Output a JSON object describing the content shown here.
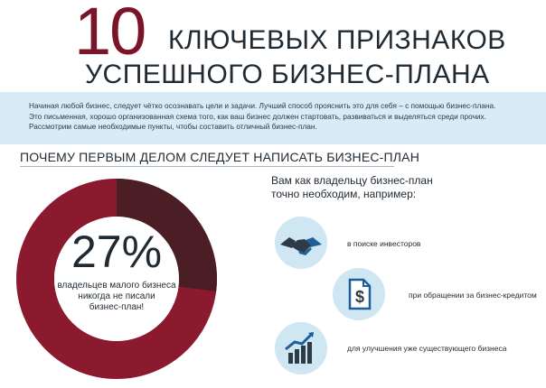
{
  "header": {
    "number": "10",
    "line1": "КЛЮЧЕВЫХ ПРИЗНАКОВ",
    "line2": "УСПЕШНОГО БИЗНЕС-ПЛАНА"
  },
  "intro": {
    "line1": "Начиная любой бизнес, следует чётко осознавать цели и задачи. Лучший способ прояснить это для себя – с помощью бизнес-плана.",
    "line2": "Это письменная, хорошо организованная схема того, как ваш бизнес должен стартовать, развиваться и выделяться среди прочих.",
    "line3": "Рассмотрим самые необходимые пункты, чтобы составить отличный бизнес-план."
  },
  "section": {
    "title": "ПОЧЕМУ ПЕРВЫМ ДЕЛОМ СЛЕДУЕТ НАПИСАТЬ БИЗНЕС-ПЛАН"
  },
  "stat": {
    "value": "27%",
    "fraction": 0.27,
    "line1": "владельцев малого бизнеса",
    "line2": "никогда не писали",
    "line3": "бизнес-план!",
    "colors": {
      "main": "#8c1a2e",
      "highlight": "#4a1e24"
    }
  },
  "right": {
    "intro_line1": "Вам как владельцу бизнес-план",
    "intro_line2": "точно необходим, например:",
    "items": [
      {
        "icon": "handshake-icon",
        "label": "в поиске инвесторов"
      },
      {
        "icon": "dollar-document-icon",
        "label": "при обращении за бизнес-кредитом"
      },
      {
        "icon": "growth-chart-icon",
        "label": "для улучшения уже существующего бизнеса"
      }
    ]
  },
  "colors": {
    "accent": "#7a1428",
    "band": "#d7ecf7",
    "icon_dark": "#2e3b47",
    "icon_blue": "#1f5f99"
  }
}
